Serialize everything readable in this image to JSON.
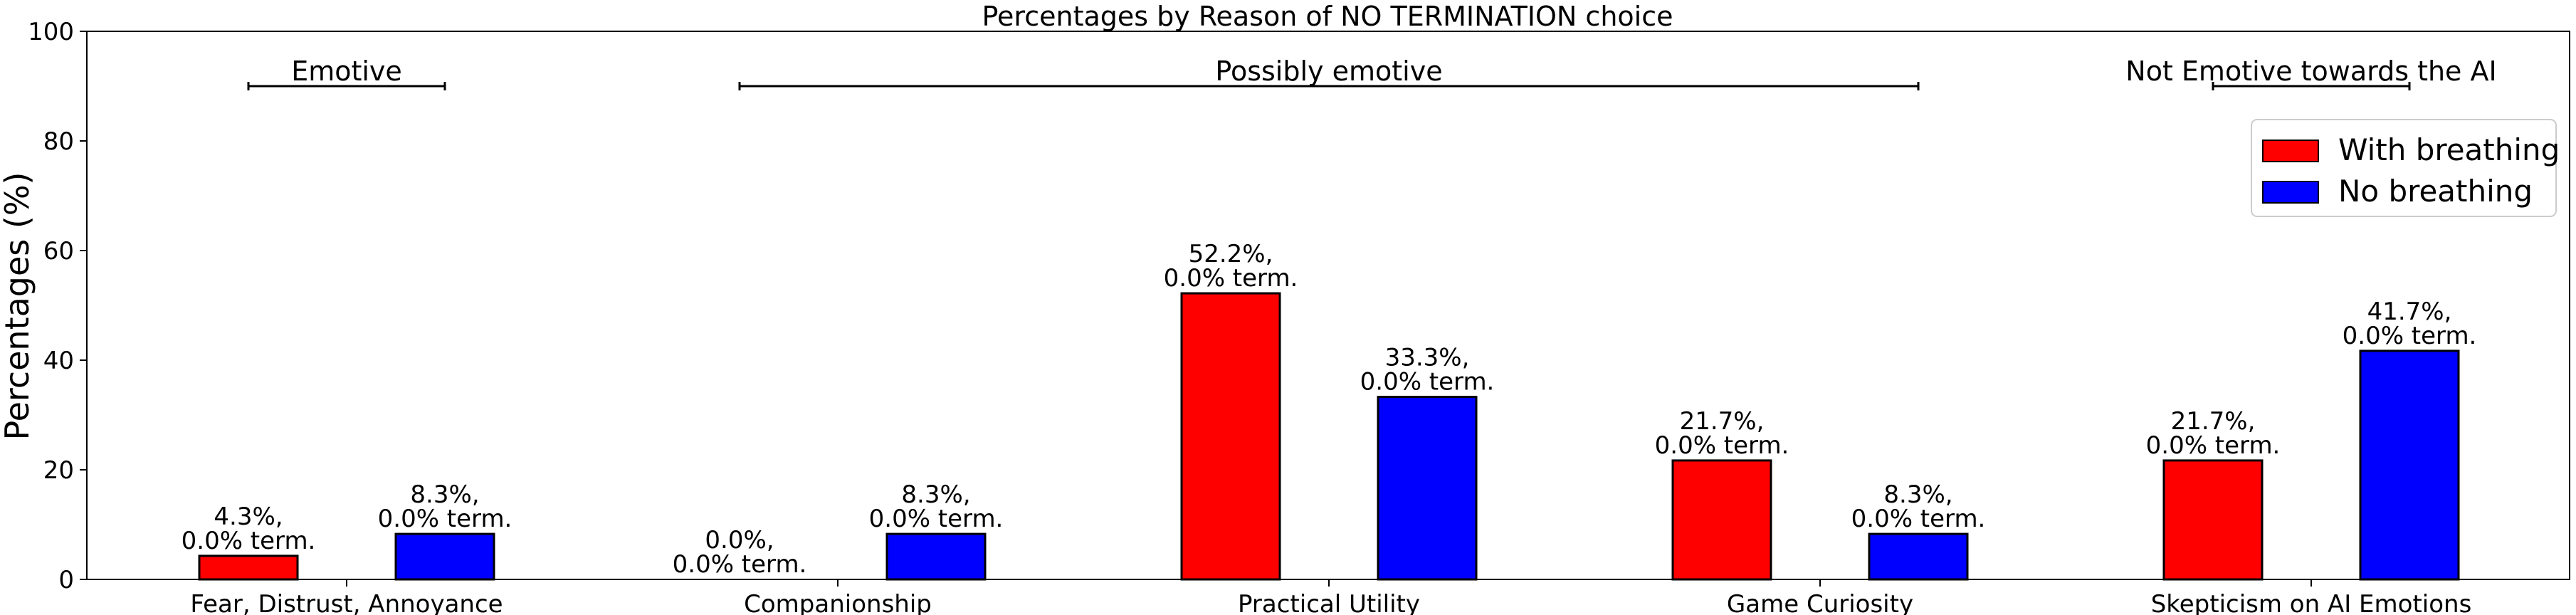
{
  "chart_data": {
    "type": "bar",
    "title": "Percentages by Reason of NO TERMINATION choice",
    "xlabel": "",
    "ylabel": "Percentages (%)",
    "ylim": [
      0,
      100
    ],
    "yticks": [
      "0",
      "20",
      "40",
      "60",
      "80",
      "100"
    ],
    "grid": false,
    "legend_position": "upper right",
    "categories": [
      "Fear, Distrust, Annoyance",
      "Companionship",
      "Practical Utility",
      "Game Curiosity",
      "Skepticism on AI Emotions"
    ],
    "series": [
      {
        "name": "With breathing",
        "color": "#ff0000",
        "values": [
          4.3,
          0.0,
          52.2,
          21.7,
          21.7
        ],
        "labels": [
          [
            "4.3%,",
            "0.0% term."
          ],
          [
            "0.0%,",
            "0.0% term."
          ],
          [
            "52.2%,",
            "0.0% term."
          ],
          [
            "21.7%,",
            "0.0% term."
          ],
          [
            "21.7%,",
            "0.0% term."
          ]
        ]
      },
      {
        "name": "No breathing",
        "color": "#0000ff",
        "values": [
          8.3,
          8.3,
          33.3,
          8.3,
          41.7
        ],
        "labels": [
          [
            "8.3%,",
            "0.0% term."
          ],
          [
            "8.3%,",
            "0.0% term."
          ],
          [
            "33.3%,",
            "0.0% term."
          ],
          [
            "8.3%,",
            "0.0% term."
          ],
          [
            "41.7%,",
            "0.0% term."
          ]
        ]
      }
    ],
    "groups": [
      {
        "label": "Emotive",
        "from_category": 0,
        "to_category": 0,
        "y": 90
      },
      {
        "label": "Possibly emotive",
        "from_category": 1,
        "to_category": 3,
        "y": 90
      },
      {
        "label": "Not Emotive towards the AI",
        "from_category": 4,
        "to_category": 4,
        "y": 90
      }
    ]
  }
}
